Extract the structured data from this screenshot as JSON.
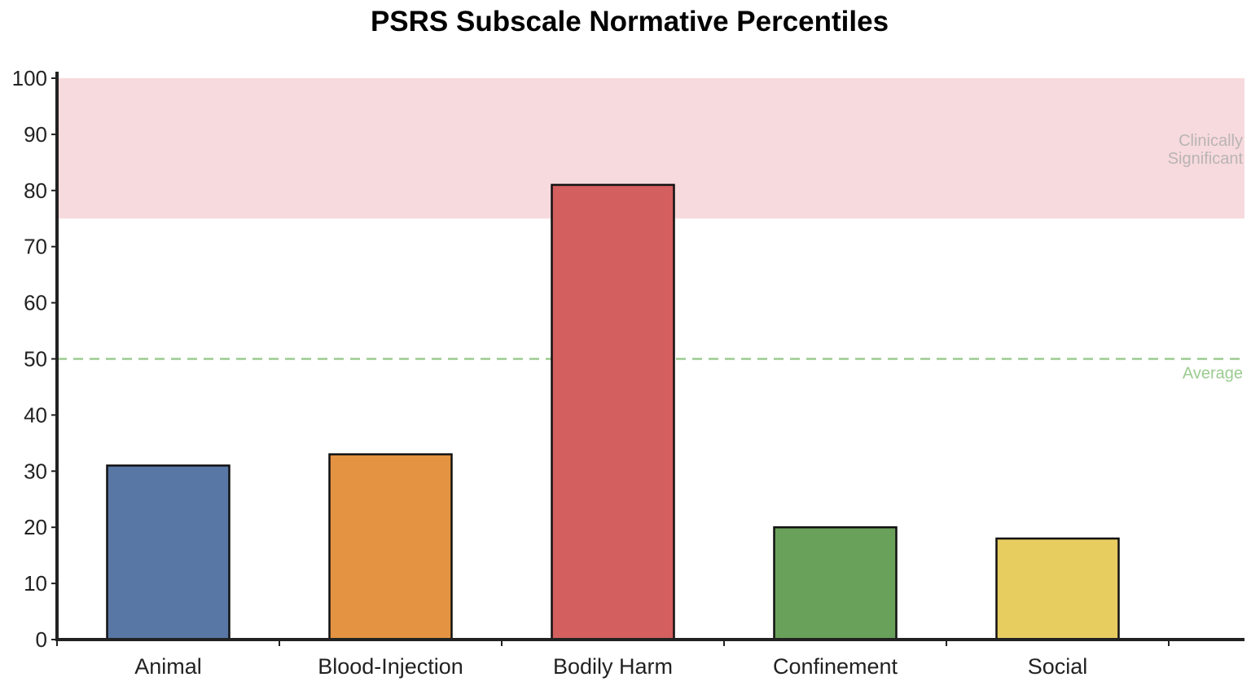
{
  "chart_data": {
    "type": "bar",
    "title": "PSRS Subscale Normative Percentiles",
    "xlabel": "",
    "ylabel": "",
    "categories": [
      "Animal",
      "Blood-Injection",
      "Bodily Harm",
      "Confinement",
      "Social"
    ],
    "values": [
      31,
      33,
      81,
      20,
      18
    ],
    "colors": [
      "#5877a5",
      "#e39342",
      "#d35f5f",
      "#6aa15a",
      "#e7cc60"
    ],
    "ylim": [
      0,
      100
    ],
    "yticks": [
      0,
      10,
      20,
      30,
      40,
      50,
      60,
      70,
      80,
      90,
      100
    ],
    "grid": false,
    "legend": "none",
    "bands": [
      {
        "from": 75,
        "to": 100,
        "label_lines": [
          "Clinically",
          "Significant"
        ],
        "color": "#f7dadd",
        "label_color": "#b9b4b5"
      }
    ],
    "reference_lines": [
      {
        "value": 50,
        "label": "Average",
        "color": "#9ccb91",
        "style": "dashed"
      }
    ]
  }
}
